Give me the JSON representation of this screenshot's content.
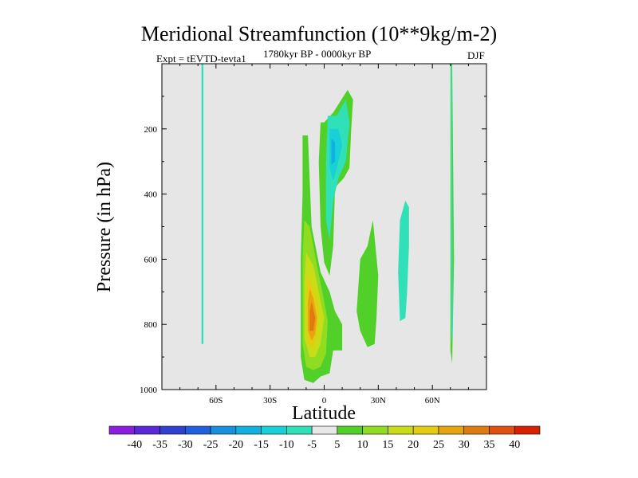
{
  "chart_data": {
    "type": "contour",
    "title": "Meridional Streamfunction (10**9kg/m-2)",
    "subtitle_left": "Expt = tEVTD-tevta1",
    "subtitle_center": "1780kyr BP - 0000kyr BP",
    "subtitle_right": "DJF",
    "xlabel": "Latitude",
    "ylabel": "Pressure (in hPa)",
    "xlim": [
      -90,
      90
    ],
    "ylim": [
      1000,
      0
    ],
    "x_ticks": [
      {
        "value": -60,
        "label": "60S"
      },
      {
        "value": -30,
        "label": "30S"
      },
      {
        "value": 0,
        "label": "0"
      },
      {
        "value": 30,
        "label": "30N"
      },
      {
        "value": 60,
        "label": "60N"
      }
    ],
    "y_ticks": [
      {
        "value": 200,
        "label": "200"
      },
      {
        "value": 400,
        "label": "400"
      },
      {
        "value": 600,
        "label": "600"
      },
      {
        "value": 800,
        "label": "800"
      },
      {
        "value": 1000,
        "label": "1000"
      }
    ],
    "levels": [
      -40,
      -35,
      -30,
      -25,
      -20,
      -15,
      -10,
      -5,
      5,
      10,
      15,
      20,
      25,
      30,
      35,
      40
    ],
    "level_labels": [
      "-40",
      "-35",
      "-30",
      "-25",
      "-20",
      "-15",
      "-10",
      "-5",
      "5",
      "10",
      "15",
      "20",
      "25",
      "30",
      "35",
      "40"
    ],
    "colors": [
      "#8a1ee0",
      "#5a28d8",
      "#3040d0",
      "#2060e0",
      "#1890e0",
      "#10b0e0",
      "#18d0d8",
      "#30e0b8",
      "#e8e8e8",
      "#50d028",
      "#90dc20",
      "#c8dc18",
      "#e6cc10",
      "#e6a410",
      "#e07a10",
      "#e05010",
      "#d82000"
    ],
    "regions": [
      {
        "name": "band-60s",
        "level": -5,
        "points": [
          [
            -68,
            0
          ],
          [
            -67,
            0
          ],
          [
            -67,
            860
          ],
          [
            -68,
            860
          ]
        ]
      },
      {
        "name": "band-70n",
        "level": 5,
        "points": [
          [
            70,
            0
          ],
          [
            71,
            0
          ],
          [
            72,
            600
          ],
          [
            71,
            920
          ],
          [
            70,
            880
          ]
        ]
      },
      {
        "name": "band-71n",
        "level": -5,
        "points": [
          [
            70.2,
            0
          ],
          [
            70.8,
            0
          ],
          [
            71.3,
            800
          ],
          [
            70.9,
            860
          ],
          [
            70.4,
            820
          ]
        ]
      },
      {
        "name": "core-positive-5",
        "level": 5,
        "points": [
          [
            -12,
            220
          ],
          [
            -9,
            220
          ],
          [
            -7,
            500
          ],
          [
            -2,
            640
          ],
          [
            3,
            700
          ],
          [
            6,
            760
          ],
          [
            10,
            800
          ],
          [
            10,
            880
          ],
          [
            5,
            880
          ],
          [
            3,
            950
          ],
          [
            -2,
            960
          ],
          [
            -6,
            980
          ],
          [
            -11,
            970
          ],
          [
            -13,
            900
          ],
          [
            -13,
            600
          ],
          [
            -12,
            400
          ]
        ]
      },
      {
        "name": "core-positive-10",
        "level": 10,
        "points": [
          [
            -11,
            480
          ],
          [
            -8,
            500
          ],
          [
            -4,
            620
          ],
          [
            -1,
            700
          ],
          [
            2,
            790
          ],
          [
            1,
            890
          ],
          [
            -2,
            930
          ],
          [
            -6,
            940
          ],
          [
            -10,
            930
          ],
          [
            -12,
            860
          ],
          [
            -12,
            600
          ]
        ]
      },
      {
        "name": "core-positive-15",
        "level": 15,
        "points": [
          [
            -10,
            580
          ],
          [
            -6,
            620
          ],
          [
            -3,
            700
          ],
          [
            0,
            780
          ],
          [
            -2,
            860
          ],
          [
            -5,
            900
          ],
          [
            -8,
            900
          ],
          [
            -11,
            840
          ],
          [
            -11,
            680
          ]
        ]
      },
      {
        "name": "core-positive-20",
        "level": 20,
        "points": [
          [
            -9,
            650
          ],
          [
            -6,
            690
          ],
          [
            -3,
            750
          ],
          [
            -4,
            830
          ],
          [
            -6,
            870
          ],
          [
            -9,
            860
          ],
          [
            -10,
            760
          ]
        ]
      },
      {
        "name": "core-positive-25",
        "level": 25,
        "points": [
          [
            -8,
            690
          ],
          [
            -6,
            720
          ],
          [
            -4,
            780
          ],
          [
            -5,
            830
          ],
          [
            -7,
            850
          ],
          [
            -9,
            820
          ],
          [
            -9,
            730
          ]
        ]
      },
      {
        "name": "core-positive-30",
        "level": 30,
        "points": [
          [
            -7,
            730
          ],
          [
            -5,
            780
          ],
          [
            -6,
            820
          ],
          [
            -8,
            820
          ],
          [
            -8,
            760
          ]
        ]
      },
      {
        "name": "upper-positive-5",
        "level": 5,
        "points": [
          [
            -2,
            180
          ],
          [
            0,
            180
          ],
          [
            5,
            150
          ],
          [
            13,
            80
          ],
          [
            16,
            110
          ],
          [
            15,
            200
          ],
          [
            14,
            320
          ],
          [
            11,
            350
          ],
          [
            6,
            380
          ],
          [
            5,
            560
          ],
          [
            3,
            650
          ],
          [
            0,
            610
          ],
          [
            -2,
            500
          ],
          [
            -3,
            300
          ]
        ]
      },
      {
        "name": "upper-negative-5",
        "level": -5,
        "points": [
          [
            2,
            160
          ],
          [
            7,
            160
          ],
          [
            12,
            110
          ],
          [
            14,
            180
          ],
          [
            12,
            300
          ],
          [
            8,
            350
          ],
          [
            5,
            420
          ],
          [
            3,
            540
          ],
          [
            1,
            480
          ],
          [
            1,
            300
          ]
        ]
      },
      {
        "name": "upper-negative-10",
        "level": -10,
        "points": [
          [
            3,
            200
          ],
          [
            8,
            200
          ],
          [
            10,
            250
          ],
          [
            7,
            320
          ],
          [
            5,
            360
          ],
          [
            3,
            320
          ]
        ]
      },
      {
        "name": "upper-negative-15",
        "level": -15,
        "points": [
          [
            4,
            230
          ],
          [
            6,
            240
          ],
          [
            6,
            300
          ],
          [
            4,
            310
          ]
        ]
      },
      {
        "name": "lower-positive-30n",
        "level": 5,
        "points": [
          [
            20,
            600
          ],
          [
            24,
            560
          ],
          [
            27,
            480
          ],
          [
            30,
            650
          ],
          [
            29,
            780
          ],
          [
            28,
            860
          ],
          [
            24,
            870
          ],
          [
            20,
            820
          ],
          [
            18,
            760
          ]
        ]
      },
      {
        "name": "mid-negative-45n",
        "level": -5,
        "points": [
          [
            42,
            480
          ],
          [
            45,
            420
          ],
          [
            47,
            440
          ],
          [
            47,
            560
          ],
          [
            46,
            700
          ],
          [
            45,
            780
          ],
          [
            42,
            790
          ],
          [
            41,
            640
          ]
        ]
      }
    ]
  }
}
